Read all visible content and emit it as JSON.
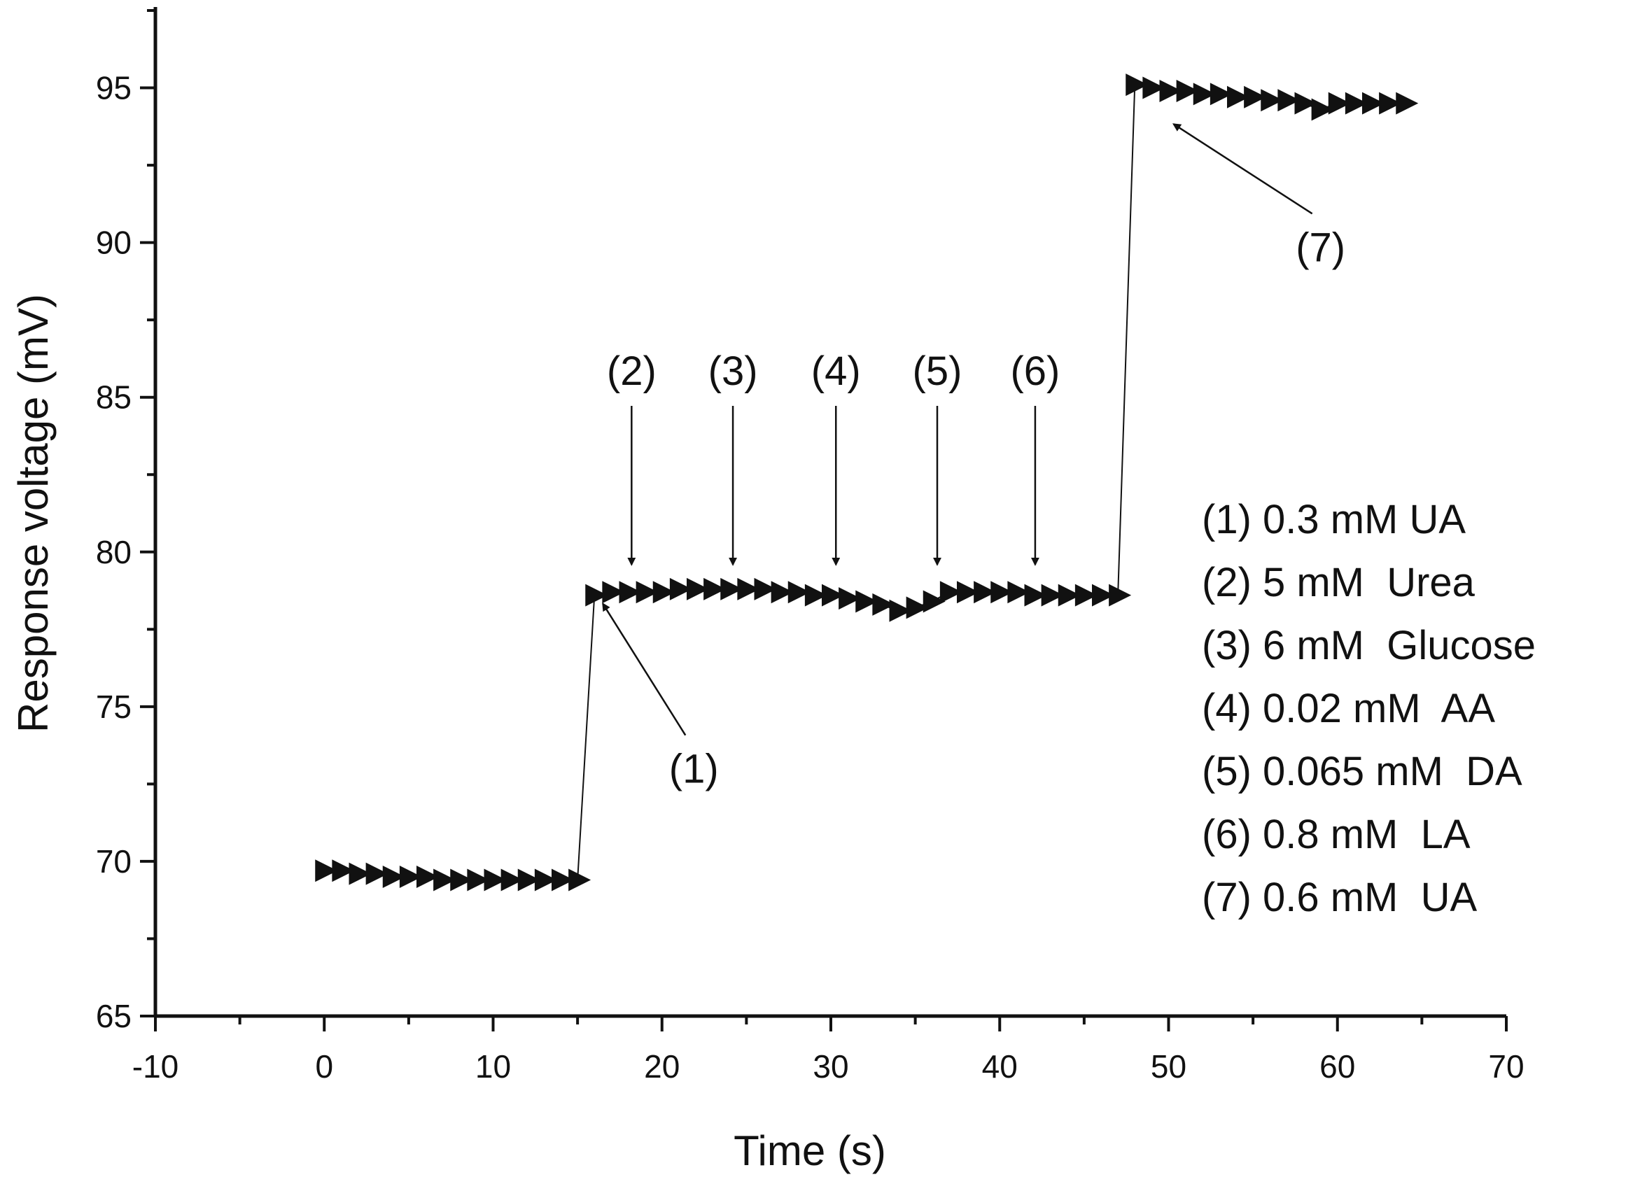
{
  "chart_data": {
    "type": "scatter",
    "title": "",
    "xlabel": "Time (s)",
    "ylabel": "Response voltage (mV)",
    "xlim": [
      -10,
      70
    ],
    "ylim": [
      65,
      97.5
    ],
    "xticks": [
      -10,
      0,
      10,
      20,
      30,
      40,
      50,
      60,
      70
    ],
    "yticks": [
      65,
      70,
      75,
      80,
      85,
      90,
      95
    ],
    "xtick_labels": [
      "-10",
      "0",
      "10",
      "20",
      "30",
      "40",
      "50",
      "60",
      "70"
    ],
    "ytick_labels": [
      "65",
      "70",
      "75",
      "80",
      "85",
      "90",
      "95"
    ],
    "marker": "right-pointing-triangle",
    "series": [
      {
        "name": "Response voltage",
        "x": [
          0,
          1,
          2,
          3,
          4,
          5,
          6,
          7,
          8,
          9,
          10,
          11,
          12,
          13,
          14,
          15,
          16,
          17,
          18,
          19,
          20,
          21,
          22,
          23,
          24,
          25,
          26,
          27,
          28,
          29,
          30,
          31,
          32,
          33,
          34,
          35,
          36,
          37,
          38,
          39,
          40,
          41,
          42,
          43,
          44,
          45,
          46,
          47,
          48,
          49,
          50,
          51,
          52,
          53,
          54,
          55,
          56,
          57,
          58,
          59,
          60,
          61,
          62,
          63,
          64
        ],
        "y": [
          69.7,
          69.7,
          69.6,
          69.6,
          69.5,
          69.5,
          69.5,
          69.4,
          69.4,
          69.4,
          69.4,
          69.4,
          69.4,
          69.4,
          69.4,
          69.4,
          78.6,
          78.7,
          78.7,
          78.7,
          78.7,
          78.8,
          78.8,
          78.8,
          78.8,
          78.8,
          78.8,
          78.7,
          78.7,
          78.6,
          78.6,
          78.5,
          78.4,
          78.3,
          78.1,
          78.2,
          78.4,
          78.7,
          78.7,
          78.7,
          78.7,
          78.7,
          78.6,
          78.6,
          78.6,
          78.6,
          78.6,
          78.6,
          95.1,
          95.0,
          94.9,
          94.9,
          94.8,
          94.8,
          94.7,
          94.7,
          94.6,
          94.6,
          94.5,
          94.3,
          94.5,
          94.5,
          94.5,
          94.5,
          94.5
        ]
      }
    ],
    "annotations": [
      {
        "label": "(1)",
        "x": 16,
        "y": 78.6,
        "arrow": "up-left"
      },
      {
        "label": "(2)",
        "x": 18.2,
        "y": 79.5,
        "arrow": "down"
      },
      {
        "label": "(3)",
        "x": 24.2,
        "y": 79.5,
        "arrow": "down"
      },
      {
        "label": "(4)",
        "x": 30.3,
        "y": 79.5,
        "arrow": "down"
      },
      {
        "label": "(5)",
        "x": 36.3,
        "y": 79.5,
        "arrow": "down"
      },
      {
        "label": "(6)",
        "x": 42.1,
        "y": 79.5,
        "arrow": "down"
      },
      {
        "label": "(7)",
        "x": 49.8,
        "y": 94.1,
        "arrow": "up-left"
      }
    ],
    "legend": {
      "position": "right",
      "entries": [
        "(1) 0.3 mM UA",
        "(2) 5 mM  Urea",
        "(3) 6 mM  Glucose",
        "(4) 0.02 mM  AA",
        "(5) 0.065 mM  DA",
        "(6) 0.8 mM  LA",
        "(7) 0.6 mM  UA"
      ]
    }
  }
}
